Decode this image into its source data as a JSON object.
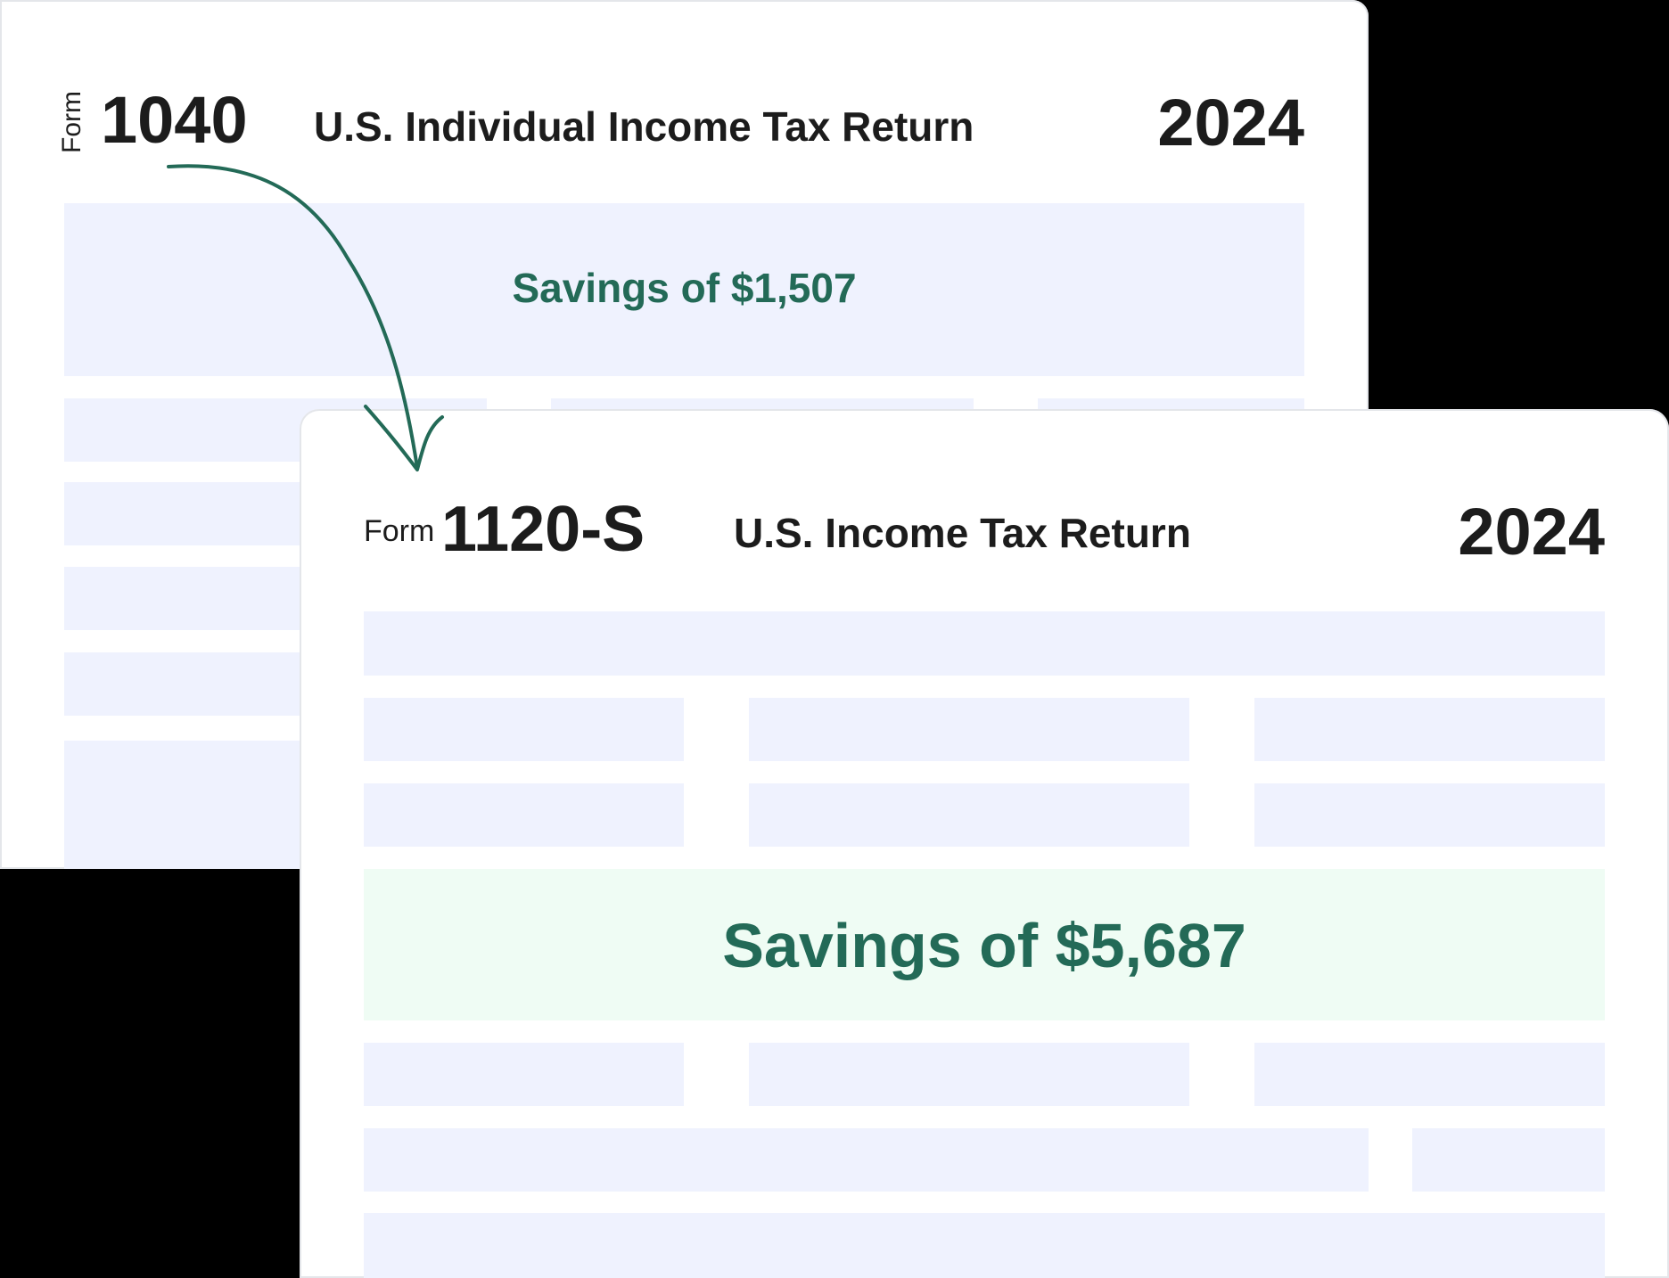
{
  "form_back": {
    "form_label": "Form",
    "number": "1040",
    "title": "U.S. Individual Income Tax Return",
    "year": "2024",
    "savings": "Savings of $1,507"
  },
  "form_front": {
    "form_label": "Form",
    "number": "1120-S",
    "title": "U.S. Income Tax Return",
    "year": "2024",
    "savings": "Savings of $5,687"
  },
  "colors": {
    "accent_green": "#236a57",
    "field_fill": "#eff2fe",
    "savings_fill": "#effcf4",
    "background": "#000000"
  },
  "icons": [
    "hand-drawn-arrow-icon"
  ]
}
